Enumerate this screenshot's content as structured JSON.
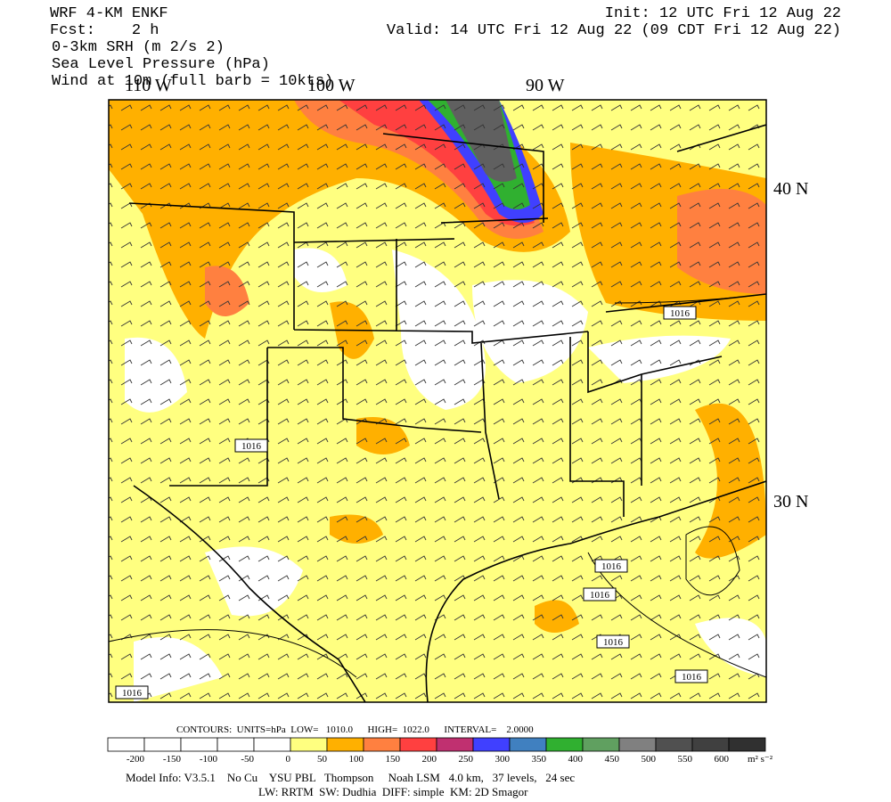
{
  "header": {
    "model": "WRF 4-KM ENKF",
    "forecast": "Fcst:    2 h",
    "init": "Init: 12 UTC Fri 12 Aug 22",
    "valid": "Valid: 14 UTC Fri 12 Aug 22 (09 CDT Fri 12 Aug 22)",
    "fields": [
      "0-3km SRH (m 2/s 2)",
      "Sea Level Pressure (hPa)",
      "Wind at 10m (full barb = 10kts)"
    ]
  },
  "map": {
    "longitudes": [
      "110 W",
      "100 W",
      "90 W"
    ],
    "latitudes": [
      "40 N",
      "30 N"
    ],
    "pressure_labels": [
      "1016",
      "1016",
      "1016",
      "1016",
      "1016",
      "1016",
      "1016"
    ]
  },
  "contour_info": "CONTOURS:  UNITS=hPa  LOW=   1010.0      HIGH=  1022.0      INTERVAL=    2.0000",
  "colorbar": {
    "levels": [
      -200,
      -150,
      -100,
      -50,
      0,
      50,
      100,
      150,
      200,
      250,
      300,
      350,
      400,
      450,
      500,
      550,
      600
    ],
    "colors": [
      "#ffffff",
      "#ffffff",
      "#ffffff",
      "#ffffff",
      "#ffffff",
      "#ffff80",
      "#ffb000",
      "#ff8040",
      "#ff4040",
      "#c03070",
      "#4040ff",
      "#4080c0",
      "#30b030",
      "#60a060",
      "#808080",
      "#505050",
      "#404040",
      "#303030"
    ],
    "units": "m² s⁻²"
  },
  "footer": [
    "Model Info: V3.5.1    No Cu    YSU PBL   Thompson     Noah LSM   4.0 km,   37 levels,   24 sec",
    "LW: RRTM  SW: Dudhia  DIFF: simple  KM: 2D Smagor"
  ]
}
